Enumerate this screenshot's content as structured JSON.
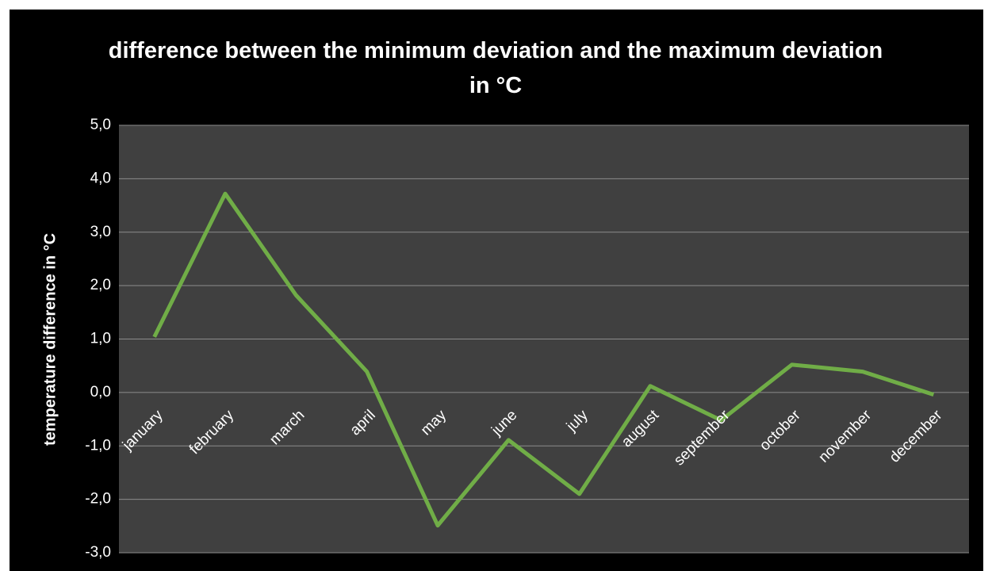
{
  "chart_data": {
    "type": "line",
    "title": "difference between the minimum deviation and the maximum deviation in °C",
    "y_label": "temperature difference in °C",
    "categories": [
      "january",
      "february",
      "march",
      "april",
      "may",
      "june",
      "july",
      "august",
      "september",
      "october",
      "november",
      "december"
    ],
    "series": [
      {
        "name": "difference",
        "color": "#70ad47",
        "values": [
          1.04,
          3.72,
          1.82,
          0.39,
          -2.49,
          -0.89,
          -1.9,
          0.12,
          -0.52,
          0.52,
          0.39,
          -0.04
        ]
      }
    ],
    "ylim": [
      -3,
      5
    ],
    "yticks": [
      {
        "value": -3,
        "label": "-3,0"
      },
      {
        "value": -2,
        "label": "-2,0"
      },
      {
        "value": -1,
        "label": "-1,0"
      },
      {
        "value": 0,
        "label": "0,0"
      },
      {
        "value": 1,
        "label": "1,0"
      },
      {
        "value": 2,
        "label": "2,0"
      },
      {
        "value": 3,
        "label": "3,0"
      },
      {
        "value": 4,
        "label": "4,0"
      },
      {
        "value": 5,
        "label": "5,0"
      }
    ],
    "grid": true
  }
}
